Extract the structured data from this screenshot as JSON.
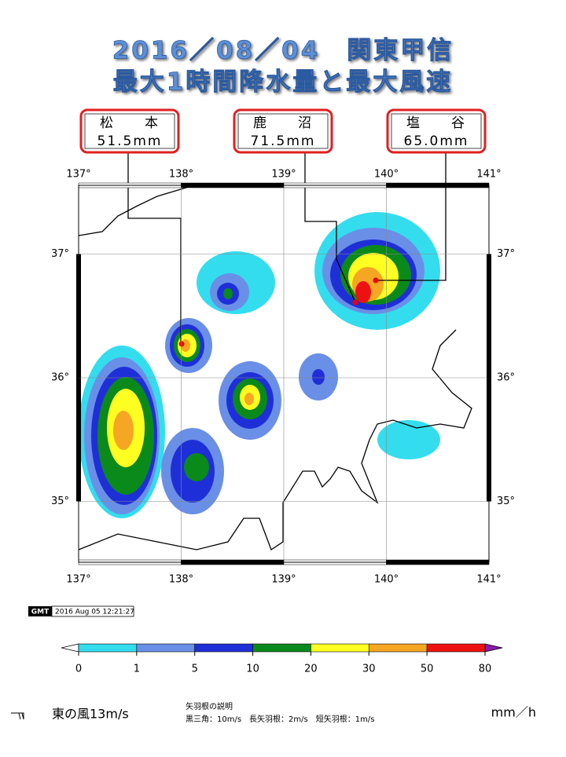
{
  "title": {
    "line1": "2016／08／04　関東甲信",
    "line2": "最大1時間降水量と最大風速"
  },
  "stations": [
    {
      "name": "松　　本",
      "value": "51.5mm"
    },
    {
      "name": "鹿　　沼",
      "value": "71.5mm"
    },
    {
      "name": "塩　　谷",
      "value": "65.0mm"
    }
  ],
  "map": {
    "lon_ticks": [
      {
        "value": 137,
        "label": "137°"
      },
      {
        "value": 138,
        "label": "138°"
      },
      {
        "value": 139,
        "label": "139°"
      },
      {
        "value": 140,
        "label": "140°"
      },
      {
        "value": 141,
        "label": "141°"
      }
    ],
    "lat_ticks": [
      {
        "value": 35,
        "label": "35°"
      },
      {
        "value": 36,
        "label": "36°"
      },
      {
        "value": 37,
        "label": "37°"
      }
    ],
    "timestamp": "2016 Aug 05 12:21:27",
    "logo": "GMT"
  },
  "colorbar": {
    "bounds": [
      0,
      1,
      5,
      10,
      20,
      30,
      50,
      80
    ],
    "colors": [
      "#33ddee",
      "#6a8fe6",
      "#1f2fd8",
      "#0a8a1a",
      "#ffff22",
      "#f5a623",
      "#ee1111"
    ],
    "under_color": "#ffffff",
    "over_color": "#8a1ab0",
    "unit": "mm／h"
  },
  "legend": {
    "wind_example": "東の風13m/s",
    "heading": "矢羽根の説明",
    "explanation": "黒三角：10m/s　長矢羽根：2m/s　短矢羽根：1m/s"
  }
}
